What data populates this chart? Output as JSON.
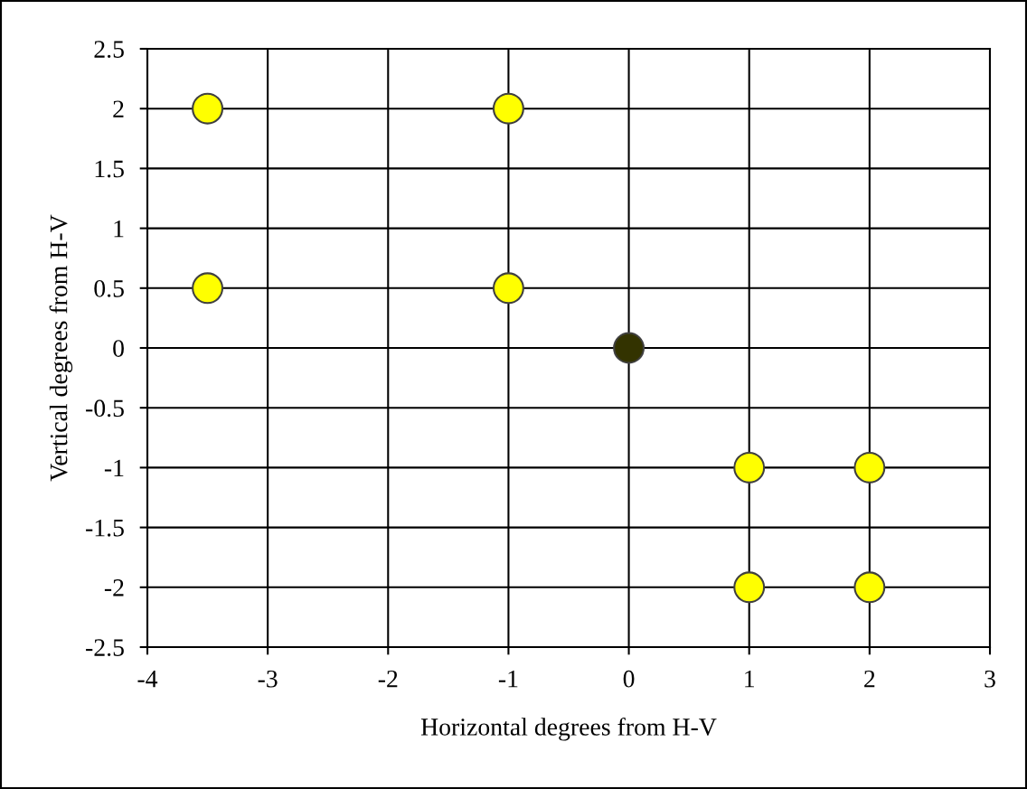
{
  "chart_data": {
    "type": "scatter",
    "xlabel": "Horizontal degrees from H-V",
    "ylabel": "Vertical degrees from H-V",
    "x": [
      -3.5,
      -1,
      -3.5,
      -1,
      0,
      1,
      2,
      1,
      2
    ],
    "values": [
      2,
      2,
      0.5,
      0.5,
      0,
      -1,
      -1,
      -2,
      -2
    ],
    "colors": [
      "#ffff00",
      "#ffff00",
      "#ffff00",
      "#ffff00",
      "#333300",
      "#ffff00",
      "#ffff00",
      "#ffff00",
      "#ffff00"
    ],
    "marker": "circle",
    "xlim": [
      -4,
      3
    ],
    "xticks": [
      -4,
      -3,
      -2,
      -1,
      0,
      1,
      2,
      3
    ],
    "ylim": [
      -2.5,
      2.5
    ],
    "yticks": [
      -2.5,
      -2,
      -1.5,
      -1,
      -0.5,
      0,
      0.5,
      1,
      1.5,
      2,
      2.5
    ],
    "grid": true
  }
}
